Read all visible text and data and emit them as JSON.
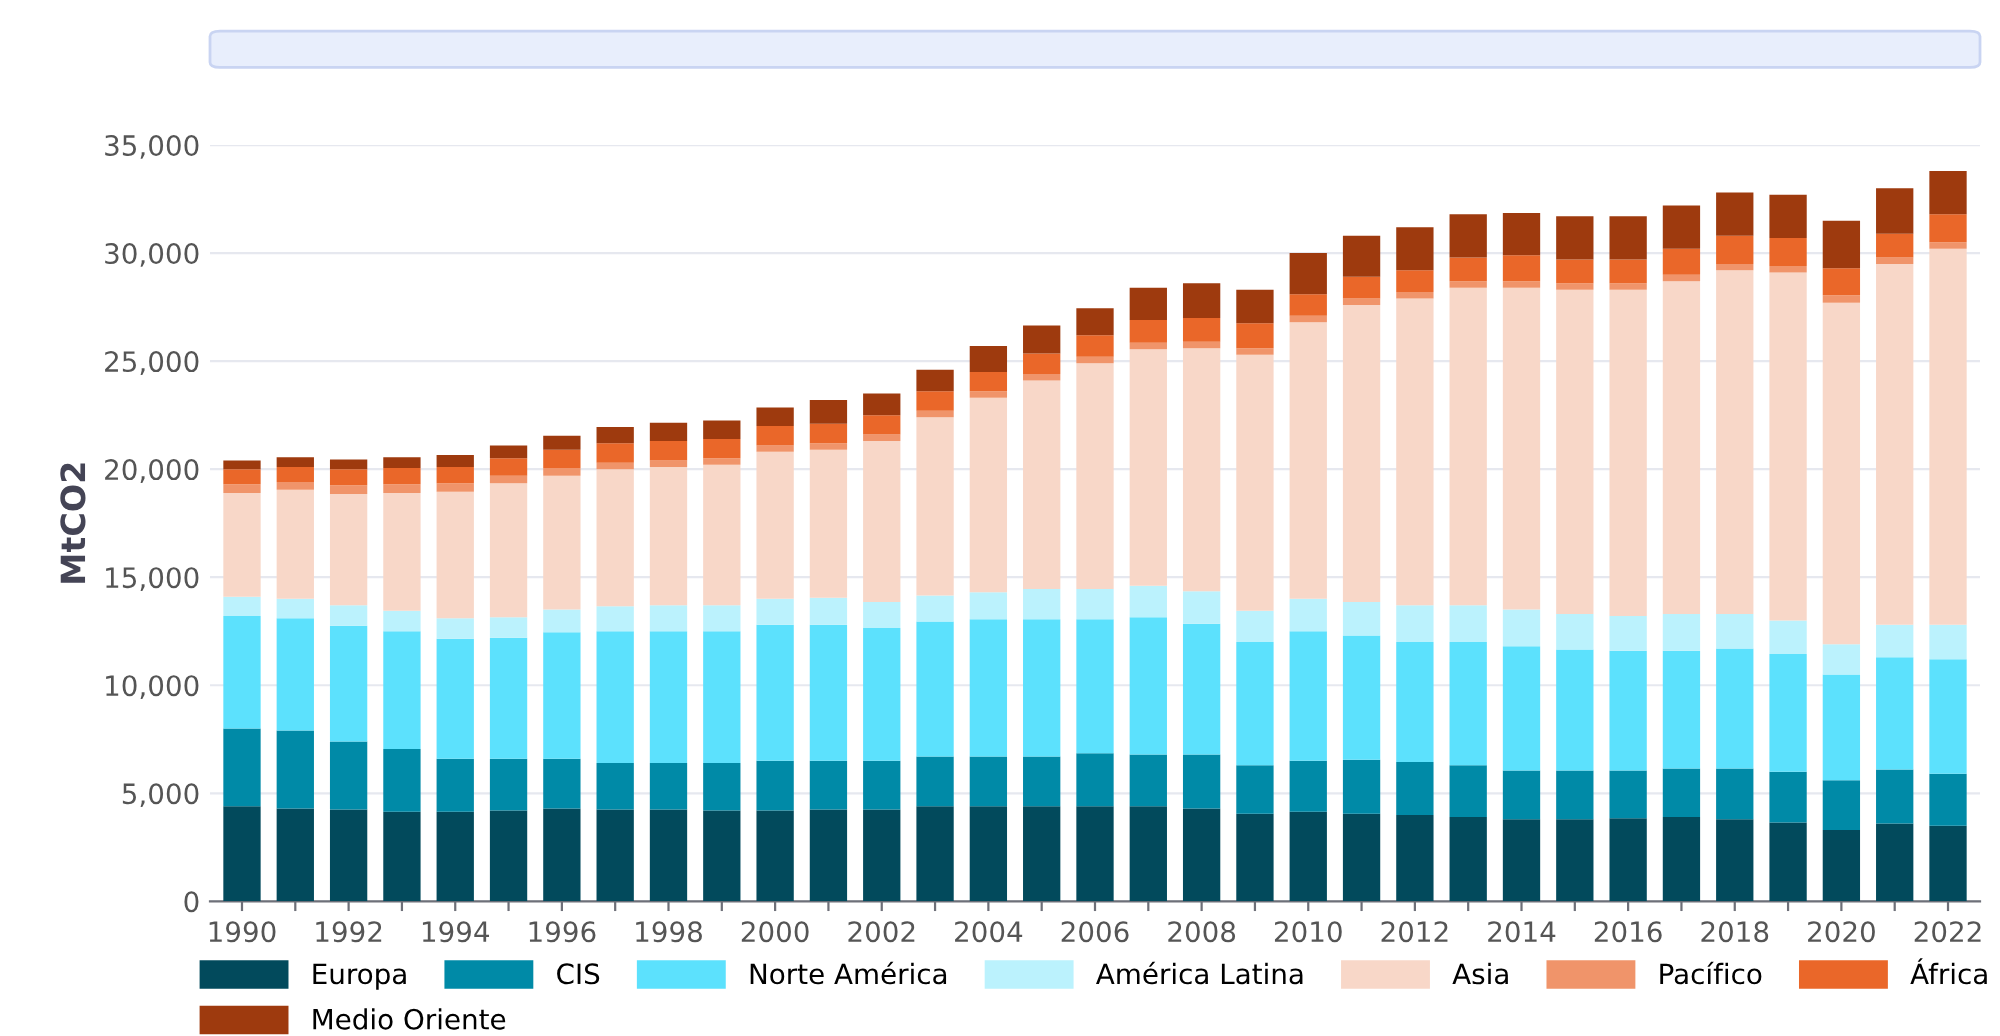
{
  "chart_data": {
    "type": "bar",
    "stacked": true,
    "ylabel": "MtCO2",
    "categories": [
      "1990",
      null,
      "1992",
      null,
      "1994",
      null,
      "1996",
      null,
      "1998",
      null,
      "2000",
      null,
      "2002",
      null,
      "2004",
      null,
      "2006",
      null,
      "2008",
      null,
      "2010",
      null,
      "2012",
      null,
      "2014",
      null,
      "2016",
      null,
      "2018",
      null,
      "2020",
      null,
      "2022"
    ],
    "ylim": [
      0,
      35000
    ],
    "yticks": [
      0,
      {
        "value": 5000,
        "label": "5,000"
      },
      {
        "value": 10000,
        "label": "10,000"
      },
      {
        "value": 15000,
        "label": "15,000"
      },
      {
        "value": 20000,
        "label": "20,000"
      },
      {
        "value": 25000,
        "label": "25,000"
      },
      {
        "value": 30000,
        "label": "30,000"
      },
      {
        "value": 35000,
        "label": "35,000"
      }
    ],
    "grid": "y",
    "legend": "bottom",
    "series": [
      {
        "name": "Europa",
        "color": "#024a5c",
        "values": [
          4400,
          4300,
          4250,
          4150,
          4150,
          4200,
          4300,
          4250,
          4250,
          4200,
          4200,
          4250,
          4250,
          4400,
          4400,
          4400,
          4400,
          4400,
          4300,
          4050,
          4150,
          4050,
          4000,
          3900,
          3800,
          3800,
          3850,
          3900,
          3800,
          3650,
          3300,
          3600,
          3500
        ]
      },
      {
        "name": "CIS",
        "color": "#008aa7",
        "values": [
          3600,
          3600,
          3150,
          2900,
          2450,
          2400,
          2300,
          2150,
          2150,
          2200,
          2300,
          2250,
          2250,
          2300,
          2300,
          2300,
          2450,
          2400,
          2500,
          2250,
          2350,
          2500,
          2450,
          2400,
          2250,
          2250,
          2200,
          2250,
          2350,
          2350,
          2300,
          2500,
          2400
        ]
      },
      {
        "name": "Norte América",
        "color": "#5ce1fd",
        "values": [
          5200,
          5200,
          5350,
          5450,
          5550,
          5600,
          5850,
          6100,
          6100,
          6100,
          6300,
          6300,
          6150,
          6250,
          6350,
          6350,
          6200,
          6350,
          6050,
          5700,
          6000,
          5750,
          5550,
          5700,
          5750,
          5600,
          5550,
          5450,
          5550,
          5450,
          4900,
          5200,
          5300
        ]
      },
      {
        "name": "América Latina",
        "color": "#bbf2fd",
        "values": [
          900,
          900,
          950,
          950,
          950,
          950,
          1050,
          1150,
          1200,
          1200,
          1200,
          1250,
          1200,
          1200,
          1250,
          1400,
          1400,
          1450,
          1500,
          1450,
          1500,
          1550,
          1700,
          1700,
          1700,
          1650,
          1600,
          1700,
          1600,
          1550,
          1400,
          1500,
          1600
        ]
      },
      {
        "name": "Asia",
        "color": "#f8d7c8",
        "values": [
          4800,
          5050,
          5150,
          5450,
          5850,
          6200,
          6200,
          6350,
          6400,
          6500,
          6800,
          6850,
          7450,
          8250,
          9000,
          9650,
          10450,
          10950,
          11250,
          11850,
          12800,
          13750,
          14200,
          14700,
          14900,
          15000,
          15100,
          15400,
          15900,
          16100,
          15800,
          16700,
          17400
        ]
      },
      {
        "name": "Pacífico",
        "color": "#f0946a",
        "values": [
          400,
          350,
          400,
          400,
          400,
          350,
          350,
          300,
          300,
          300,
          300,
          300,
          300,
          300,
          300,
          300,
          300,
          300,
          300,
          300,
          300,
          300,
          300,
          300,
          300,
          300,
          300,
          300,
          300,
          300,
          350,
          300,
          300
        ]
      },
      {
        "name": "África",
        "color": "#ea6729",
        "values": [
          700,
          700,
          750,
          750,
          750,
          800,
          850,
          900,
          900,
          900,
          900,
          900,
          900,
          900,
          900,
          950,
          1000,
          1050,
          1100,
          1150,
          1000,
          1000,
          1000,
          1100,
          1200,
          1100,
          1100,
          1200,
          1300,
          1300,
          1250,
          1100,
          1300
        ]
      },
      {
        "name": "Medio Oriente",
        "color": "#9e3a0e",
        "values": [
          400,
          450,
          450,
          500,
          550,
          600,
          650,
          750,
          850,
          850,
          850,
          1100,
          1000,
          1000,
          1200,
          1300,
          1250,
          1500,
          1600,
          1550,
          1900,
          1900,
          2000,
          2000,
          1950,
          2000,
          2000,
          2000,
          2000,
          2000,
          2200,
          2100,
          2000
        ]
      }
    ]
  }
}
